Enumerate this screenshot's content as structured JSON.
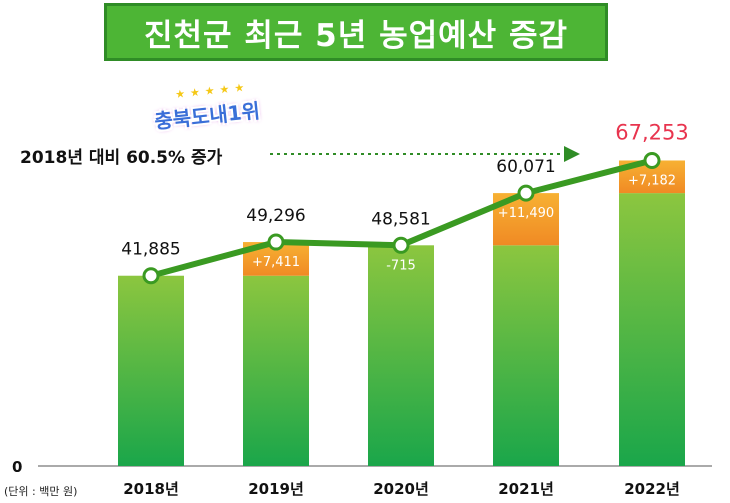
{
  "banner": {
    "title": "진천군 최근 5년 농업예산 증감"
  },
  "badge": {
    "text": "충북도내1위",
    "stars": "★★★★★"
  },
  "note": {
    "text": "2018년 대비 60.5% 증가"
  },
  "unit_label": "(단위 : 백만 원)",
  "colors": {
    "bar_top": "#8cc63f",
    "bar_bottom": "#1aa64a",
    "increase_top": "#f7b133",
    "increase_bottom": "#f08a24",
    "line": "#3a9a22",
    "highlight": "#e8344e",
    "banner": "#4db535"
  },
  "chart_data": {
    "type": "bar",
    "title": "진천군 최근 5년 농업예산 증감",
    "xlabel": "",
    "ylabel": "",
    "unit": "(단위 : 백만 원)",
    "ylim": [
      0,
      70000
    ],
    "y_ticks": [
      "0"
    ],
    "categories": [
      "2018년",
      "2019년",
      "2020년",
      "2021년",
      "2022년"
    ],
    "values": [
      41885,
      49296,
      48581,
      60071,
      67253
    ],
    "value_labels": [
      "41,885",
      "49,296",
      "48,581",
      "60,071",
      "67,253"
    ],
    "changes": [
      0,
      7411,
      -715,
      11490,
      7182
    ],
    "change_labels": [
      "",
      "+7,411",
      "-715",
      "+11,490",
      "+7,182"
    ],
    "overlay_line": true,
    "annotation": "2018년 대비 60.5% 증가",
    "highlight_last": true
  }
}
